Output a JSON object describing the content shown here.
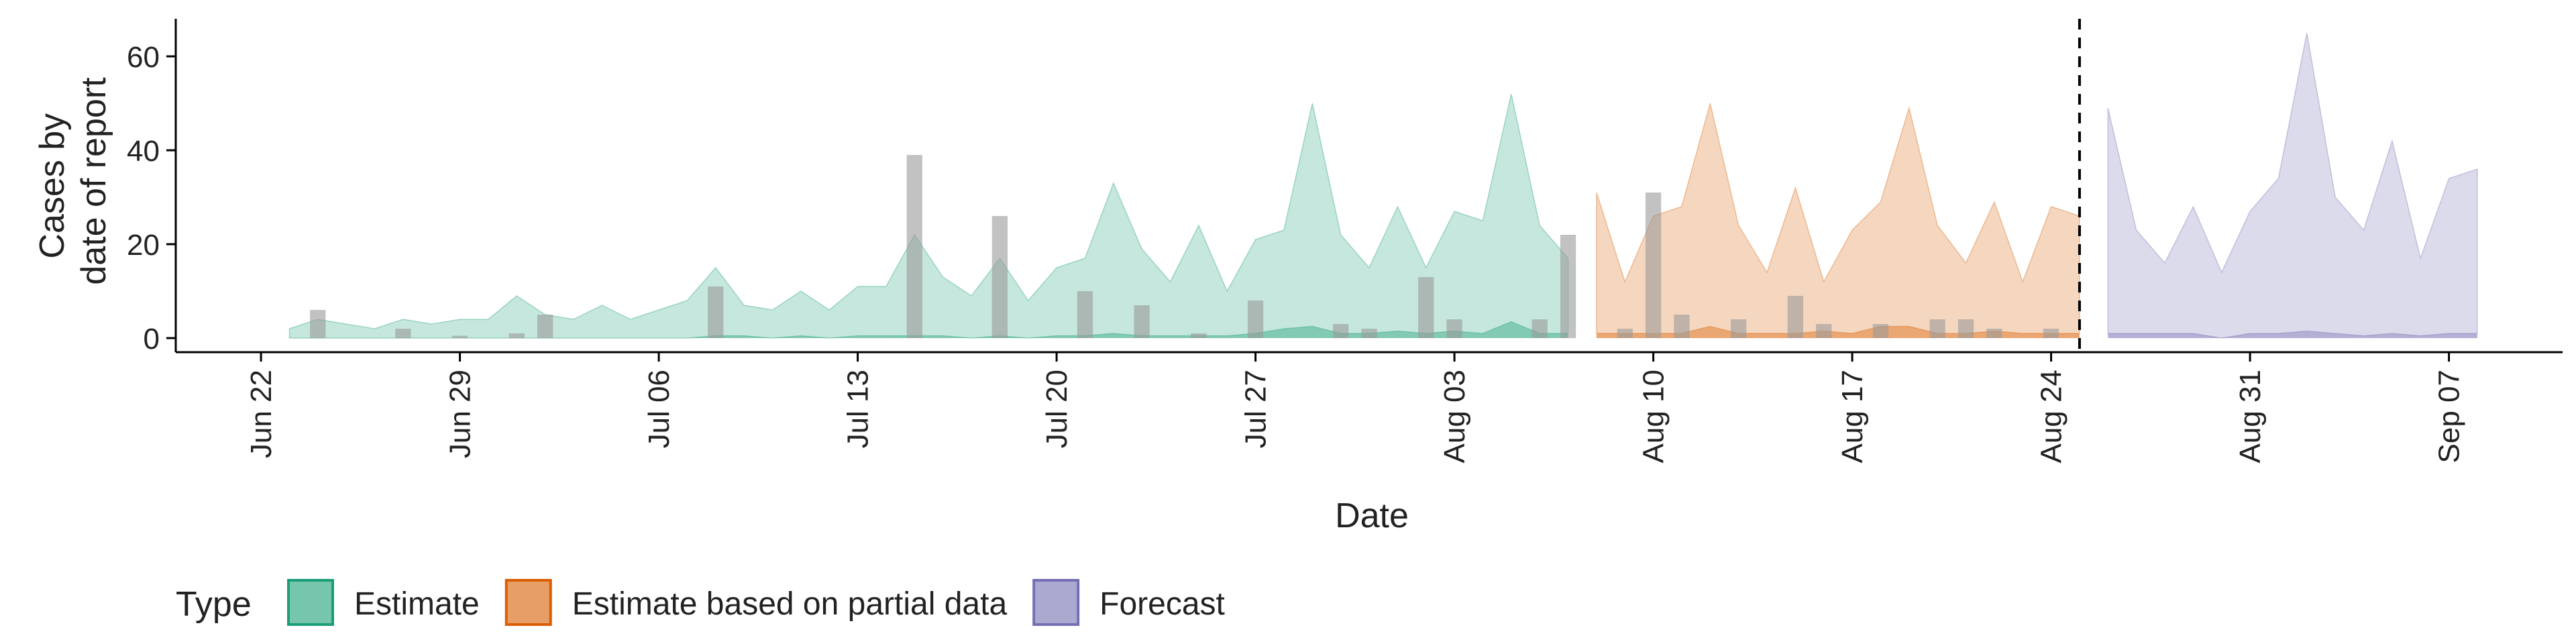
{
  "chart_data": {
    "type": "area",
    "title": "",
    "xlabel": "Date",
    "ylabel": [
      "Cases by",
      "date of report"
    ],
    "x_range": [
      "2020-06-19",
      "2020-09-11"
    ],
    "ylim": [
      -3,
      68
    ],
    "y_ticks": [
      0,
      20,
      40,
      60
    ],
    "x_ticks": [
      {
        "date": "2020-06-22",
        "label": "Jun 22"
      },
      {
        "date": "2020-06-29",
        "label": "Jun 29"
      },
      {
        "date": "2020-07-06",
        "label": "Jul 06"
      },
      {
        "date": "2020-07-13",
        "label": "Jul 13"
      },
      {
        "date": "2020-07-20",
        "label": "Jul 20"
      },
      {
        "date": "2020-07-27",
        "label": "Jul 27"
      },
      {
        "date": "2020-08-03",
        "label": "Aug 03"
      },
      {
        "date": "2020-08-10",
        "label": "Aug 10"
      },
      {
        "date": "2020-08-17",
        "label": "Aug 17"
      },
      {
        "date": "2020-08-24",
        "label": "Aug 24"
      },
      {
        "date": "2020-08-31",
        "label": "Aug 31"
      },
      {
        "date": "2020-09-07",
        "label": "Sep 07"
      }
    ],
    "grid": false,
    "legend_position": "bottom-left",
    "legend_title": "Type",
    "forecast_line_date": "2020-08-25",
    "bar_color": "#999999",
    "series": [
      {
        "name": "Estimate",
        "color": "#1b9e77",
        "start": "2020-06-23",
        "upper": [
          2,
          4,
          3,
          2,
          4,
          3,
          4,
          4,
          9,
          5,
          4,
          7,
          4,
          6,
          8,
          15,
          7,
          6,
          10,
          6,
          11,
          11,
          22,
          13,
          9,
          17,
          8,
          15,
          17,
          33,
          19,
          12,
          24,
          10,
          21,
          23,
          50,
          22,
          15,
          28,
          15,
          27,
          25,
          52,
          24,
          17
        ],
        "lower": [
          0,
          0,
          0,
          0,
          0,
          0,
          0,
          0,
          0,
          0,
          0,
          0,
          0,
          0,
          0,
          0.5,
          0.5,
          0,
          0.5,
          0,
          0.5,
          0.5,
          0.5,
          0.5,
          0,
          0.5,
          0,
          0.5,
          0.5,
          1,
          0.5,
          0.5,
          0.5,
          0.5,
          1,
          2,
          2.5,
          1,
          1,
          1.5,
          1,
          1.5,
          1,
          3.5,
          1,
          1
        ]
      },
      {
        "name": "Estimate based on partial data",
        "color": "#d95f02",
        "start": "2020-08-08",
        "upper": [
          31,
          12,
          26,
          28,
          50,
          24,
          14,
          32,
          12,
          23,
          29,
          49,
          24,
          16,
          29,
          12,
          28,
          26
        ],
        "lower": [
          1,
          1,
          1,
          1,
          2.5,
          1,
          1,
          1,
          1.5,
          1,
          2.5,
          2.5,
          1,
          1,
          1.5,
          1,
          1,
          1
        ]
      },
      {
        "name": "Forecast",
        "color": "#7570b3",
        "start": "2020-08-26",
        "upper": [
          49,
          23,
          16,
          28,
          14,
          27,
          34,
          65,
          30,
          23,
          42,
          17,
          34,
          36
        ],
        "lower": [
          1,
          1,
          1,
          1,
          0,
          1,
          1,
          1.5,
          1,
          0.5,
          1,
          0.5,
          1,
          1
        ]
      }
    ],
    "bars": [
      {
        "date": "2020-06-24",
        "value": 6
      },
      {
        "date": "2020-06-27",
        "value": 2
      },
      {
        "date": "2020-06-29",
        "value": 0.5
      },
      {
        "date": "2020-07-01",
        "value": 1
      },
      {
        "date": "2020-07-02",
        "value": 5
      },
      {
        "date": "2020-07-08",
        "value": 11
      },
      {
        "date": "2020-07-15",
        "value": 39
      },
      {
        "date": "2020-07-18",
        "value": 26
      },
      {
        "date": "2020-07-21",
        "value": 10
      },
      {
        "date": "2020-07-23",
        "value": 7
      },
      {
        "date": "2020-07-25",
        "value": 1
      },
      {
        "date": "2020-07-27",
        "value": 8
      },
      {
        "date": "2020-07-30",
        "value": 3
      },
      {
        "date": "2020-07-31",
        "value": 2
      },
      {
        "date": "2020-08-02",
        "value": 13
      },
      {
        "date": "2020-08-03",
        "value": 4
      },
      {
        "date": "2020-08-06",
        "value": 4
      },
      {
        "date": "2020-08-07",
        "value": 22
      },
      {
        "date": "2020-08-09",
        "value": 2
      },
      {
        "date": "2020-08-10",
        "value": 31
      },
      {
        "date": "2020-08-11",
        "value": 5
      },
      {
        "date": "2020-08-13",
        "value": 4
      },
      {
        "date": "2020-08-15",
        "value": 9
      },
      {
        "date": "2020-08-16",
        "value": 3
      },
      {
        "date": "2020-08-18",
        "value": 3
      },
      {
        "date": "2020-08-20",
        "value": 4
      },
      {
        "date": "2020-08-21",
        "value": 4
      },
      {
        "date": "2020-08-22",
        "value": 2
      },
      {
        "date": "2020-08-24",
        "value": 2
      }
    ]
  }
}
